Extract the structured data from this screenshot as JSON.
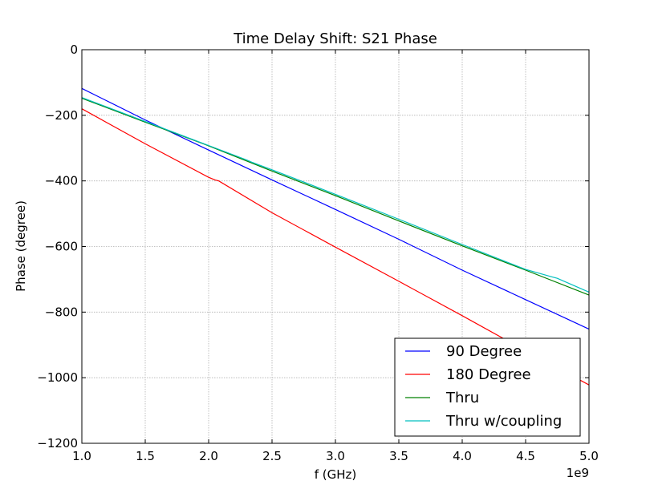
{
  "chart_data": {
    "type": "line",
    "title": "Time Delay Shift: S21 Phase",
    "xlabel": "f (GHz)",
    "ylabel": "Phase (degree)",
    "x_offset_label": "1e9",
    "xlim": [
      1.0,
      5.0
    ],
    "ylim": [
      -1200,
      0
    ],
    "x_ticks": [
      "1.0",
      "1.5",
      "2.0",
      "2.5",
      "3.0",
      "3.5",
      "4.0",
      "4.5",
      "5.0"
    ],
    "y_ticks": [
      "0",
      "−200",
      "−400",
      "−600",
      "−800",
      "−1000",
      "−1200"
    ],
    "x_tick_values": [
      1.0,
      1.5,
      2.0,
      2.5,
      3.0,
      3.5,
      4.0,
      4.5,
      5.0
    ],
    "y_tick_values": [
      0,
      -200,
      -400,
      -600,
      -800,
      -1000,
      -1200
    ],
    "grid": true,
    "legend_position": "bottom-right",
    "series": [
      {
        "name": "90 Degree",
        "color": "#0000ff",
        "x": [
          1.0,
          1.5,
          2.0,
          2.5,
          3.0,
          3.5,
          4.0,
          4.5,
          5.0
        ],
        "y": [
          -118,
          -214,
          -306,
          -397,
          -487,
          -578,
          -672,
          -762,
          -852
        ]
      },
      {
        "name": "180 Degree",
        "color": "#ff0000",
        "x": [
          1.0,
          1.5,
          2.0,
          2.05,
          2.08,
          2.5,
          3.0,
          3.5,
          4.0,
          4.5,
          5.0
        ],
        "y": [
          -180,
          -287,
          -389,
          -397,
          -400,
          -497,
          -602,
          -706,
          -811,
          -918,
          -1022
        ]
      },
      {
        "name": "Thru",
        "color": "#008000",
        "x": [
          1.0,
          1.5,
          2.0,
          2.5,
          3.0,
          3.5,
          4.0,
          4.5,
          5.0
        ],
        "y": [
          -148,
          -221,
          -293,
          -370,
          -445,
          -522,
          -598,
          -672,
          -748
        ]
      },
      {
        "name": "Thru w/coupling",
        "color": "#00bfbf",
        "x": [
          1.0,
          1.5,
          2.0,
          2.3,
          2.34,
          2.5,
          3.0,
          3.5,
          4.0,
          4.5,
          4.7,
          4.75,
          5.0
        ],
        "y": [
          -146,
          -219,
          -292,
          -336,
          -343,
          -366,
          -441,
          -517,
          -594,
          -670,
          -692,
          -697,
          -739
        ]
      }
    ]
  }
}
